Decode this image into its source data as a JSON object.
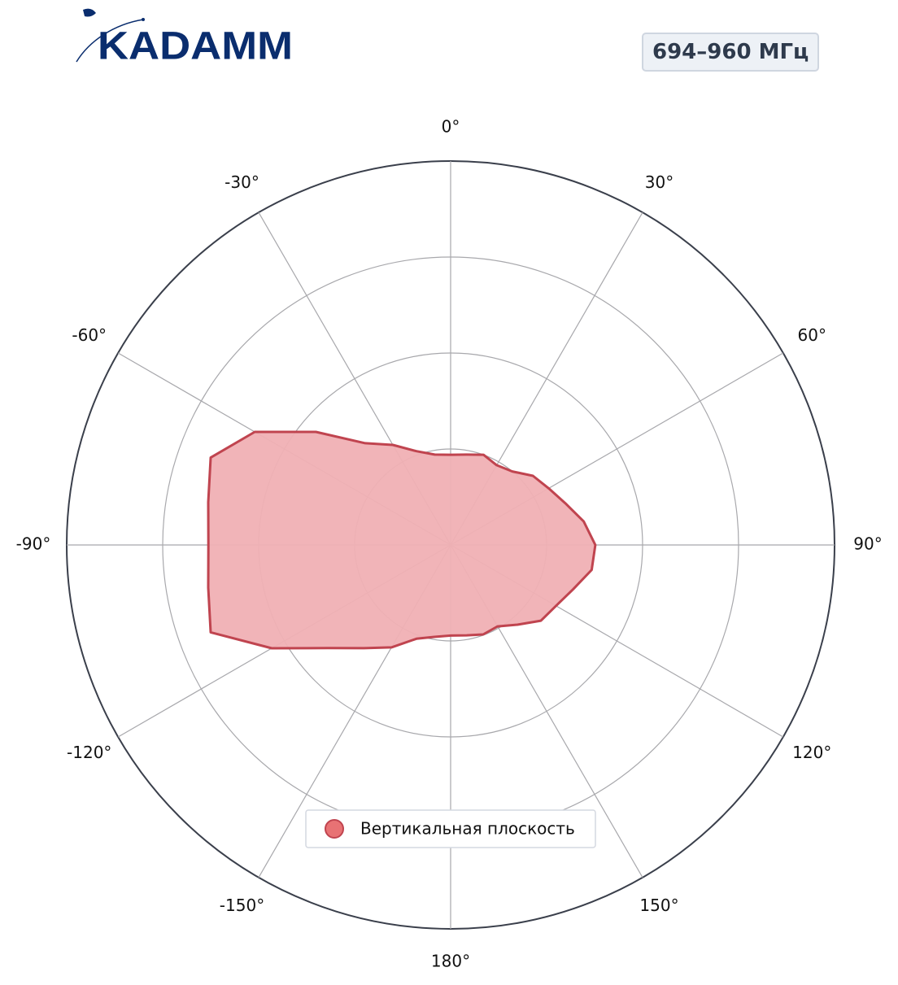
{
  "logo": "KADAMM",
  "chart_data": {
    "type": "polar",
    "title": "694–960 МГц",
    "theta": [
      -170,
      -160,
      -150,
      -140,
      -130,
      -120,
      -110,
      -100,
      -90,
      -80,
      -70,
      -60,
      -50,
      -40,
      -30,
      -20,
      -10,
      0,
      10,
      20,
      30,
      40,
      50,
      60,
      70,
      80,
      90,
      100,
      110,
      120,
      130,
      140,
      150,
      160,
      170,
      180
    ],
    "series": [
      {
        "name": "Вертикальная плоскость",
        "color": "#c0444f",
        "fill": "#f0b0b4",
        "values": [
          0.243,
          0.26,
          0.308,
          0.351,
          0.418,
          0.538,
          0.665,
          0.641,
          0.631,
          0.641,
          0.665,
          0.589,
          0.458,
          0.346,
          0.301,
          0.26,
          0.239,
          0.235,
          0.239,
          0.25,
          0.24,
          0.25,
          0.28,
          0.295,
          0.318,
          0.352,
          0.377,
          0.373,
          0.339,
          0.317,
          0.307,
          0.271,
          0.245,
          0.248,
          0.239,
          0.236
        ]
      }
    ],
    "rlim": [
      0,
      1
    ],
    "rticks": [
      0.25,
      0.5,
      0.75,
      1
    ],
    "thetaticks": [
      {
        "value": 0,
        "label": "0°"
      },
      {
        "value": 30,
        "label": "30°"
      },
      {
        "value": 60,
        "label": "60°"
      },
      {
        "value": 90,
        "label": "90°"
      },
      {
        "value": 120,
        "label": "120°"
      },
      {
        "value": 150,
        "label": "150°"
      },
      {
        "value": 180,
        "label": "180°"
      },
      {
        "value": -150,
        "label": "-150°"
      },
      {
        "value": -120,
        "label": "-120°"
      },
      {
        "value": -90,
        "label": "-90°"
      },
      {
        "value": -60,
        "label": "-60°"
      },
      {
        "value": -30,
        "label": "-30°"
      }
    ],
    "direction": "clockwise",
    "zero_location": "top",
    "grid": true,
    "legend": "lower center"
  }
}
